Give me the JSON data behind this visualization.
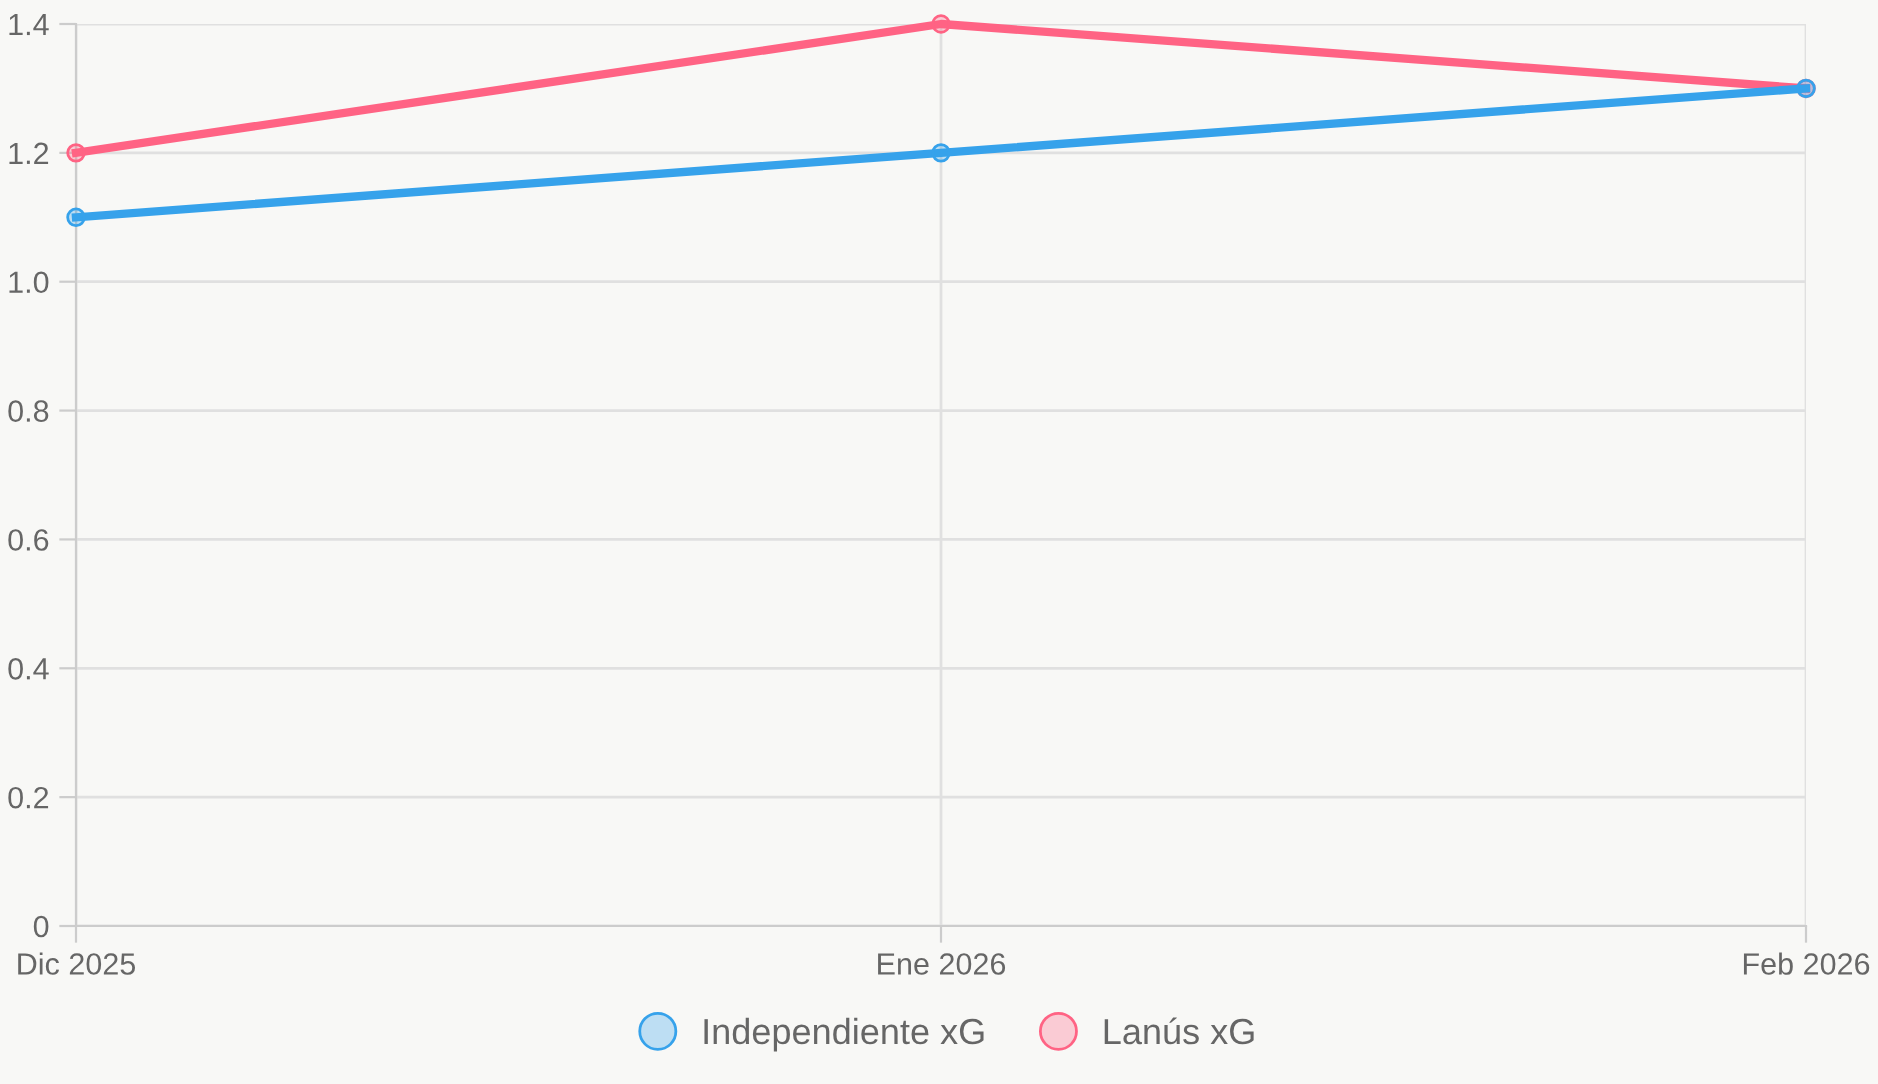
{
  "chart_data": {
    "type": "line",
    "categories": [
      "Dic 2025",
      "Ene 2026",
      "Feb 2026"
    ],
    "series": [
      {
        "name": "Independiente xG",
        "color": "#36a2eb",
        "values": [
          1.1,
          1.2,
          1.3
        ]
      },
      {
        "name": "Lanús xG",
        "color": "#ff6384",
        "values": [
          1.2,
          1.4,
          1.3
        ]
      }
    ],
    "ylim": [
      0,
      1.4
    ],
    "yticks": [
      0,
      {
        "value": 0.2,
        "label": "0.2"
      },
      {
        "value": 0.4,
        "label": "0.4"
      },
      {
        "value": 0.6,
        "label": "0.6"
      },
      {
        "value": 0.8,
        "label": "0.8"
      },
      {
        "value": 1.0,
        "label": "1.0"
      },
      {
        "value": 1.2,
        "label": "1.2"
      },
      {
        "value": 1.4,
        "label": "1.4"
      }
    ],
    "grid": true,
    "legend": "bottom",
    "marker": "circle",
    "line_style": "solid"
  }
}
